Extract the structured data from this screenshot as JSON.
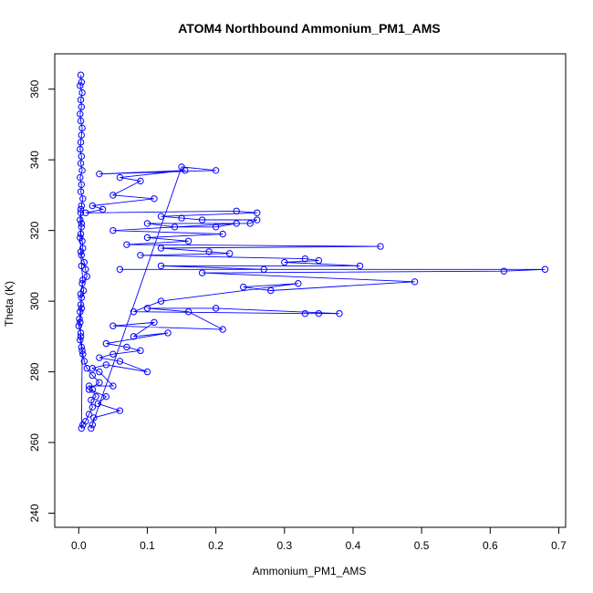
{
  "chart_data": {
    "type": "scatter",
    "title": "ATOM4 Northbound Ammonium_PM1_AMS",
    "xlabel": "Ammonium_PM1_AMS",
    "ylabel": "Theta (K)",
    "xlim": [
      -0.035,
      0.71
    ],
    "ylim": [
      236,
      370
    ],
    "x_ticks": [
      0.0,
      0.1,
      0.2,
      0.3,
      0.4,
      0.5,
      0.6,
      0.7
    ],
    "x_tick_labels": [
      "0.0",
      "0.1",
      "0.2",
      "0.3",
      "0.4",
      "0.5",
      "0.6",
      "0.7"
    ],
    "y_ticks": [
      240,
      260,
      280,
      300,
      320,
      340,
      360
    ],
    "y_tick_labels": [
      "240",
      "260",
      "280",
      "300",
      "320",
      "340",
      "360"
    ],
    "grid": false,
    "legend": "none",
    "point_style": "open-circle",
    "connected": true,
    "color": "#0000ff",
    "series": [
      {
        "values_x": [
          0.003,
          0.004,
          0.002,
          0.005,
          0.003,
          0.004,
          0.002,
          0.003,
          0.005,
          0.004,
          0.003,
          0.002,
          0.004,
          0.003,
          0.005,
          0.002,
          0.004,
          0.003,
          0.006,
          0.004,
          0.003,
          0.002,
          0.004,
          0.003,
          0.005,
          0.006,
          0.004,
          0.008,
          0.01,
          0.012,
          0.005,
          0.007,
          0.004,
          0.003,
          0.002,
          0.001,
          0.0,
          0.003,
          0.002,
          0.004,
          0.006,
          0.008,
          0.012,
          0.02,
          0.03,
          0.015,
          0.04,
          0.028,
          0.06,
          0.022,
          0.02,
          0.018,
          0.15,
          0.2,
          0.03,
          0.155,
          0.06,
          0.09,
          0.05,
          0.11,
          0.02,
          0.035,
          0.01,
          0.23,
          0.26,
          0.12,
          0.15,
          0.18,
          0.26,
          0.25,
          0.1,
          0.14,
          0.2,
          0.23,
          0.05,
          0.21,
          0.1,
          0.16,
          0.07,
          0.44,
          0.12,
          0.19,
          0.22,
          0.09,
          0.33,
          0.35,
          0.3,
          0.41,
          0.12,
          0.27,
          0.06,
          0.68,
          0.62,
          0.18,
          0.49,
          0.28,
          0.24,
          0.32,
          0.12,
          0.08,
          0.33,
          0.35,
          0.38,
          0.2,
          0.1,
          0.16,
          0.21,
          0.05,
          0.11,
          0.08,
          0.13,
          0.04,
          0.07,
          0.09,
          0.05,
          0.03,
          0.06,
          0.1,
          0.04,
          0.02,
          0.03,
          0.05,
          0.015,
          0.02,
          0.025,
          0.018,
          0.02,
          0.015,
          0.01,
          0.006,
          0.004,
          0.005,
          0.003,
          0.002,
          0.004,
          0.003,
          0.006,
          0.004,
          0.003,
          0.002,
          0.004,
          0.003
        ],
        "values_y": [
          364,
          362,
          361,
          359,
          357,
          355,
          353,
          351,
          349,
          347,
          345,
          343,
          341,
          339,
          337,
          335,
          333,
          331,
          329,
          327,
          325,
          323,
          321,
          319,
          317,
          315,
          313,
          311,
          309,
          307,
          305,
          303,
          301,
          299,
          297,
          295,
          293,
          291,
          289,
          287,
          285,
          283,
          281,
          279,
          277,
          275,
          273,
          271,
          269,
          267,
          265,
          264,
          338,
          337,
          336,
          337,
          335,
          334,
          330,
          329,
          327,
          326,
          325,
          325.5,
          325,
          324,
          323.5,
          323,
          323,
          322,
          322,
          321,
          321,
          322,
          320,
          319,
          318,
          317,
          316,
          315.5,
          315,
          314,
          313.5,
          313,
          312,
          311.5,
          311,
          310,
          310,
          309,
          309,
          309,
          308.5,
          308,
          305.5,
          303,
          304,
          305,
          300,
          297,
          296.5,
          296.5,
          296.5,
          298,
          298,
          297,
          292,
          293,
          294,
          290,
          291,
          288,
          287,
          286,
          285,
          284,
          283,
          280,
          282,
          281,
          280,
          276,
          276,
          275,
          273,
          272,
          270,
          268,
          266,
          265,
          264,
          286,
          290,
          294,
          298,
          302,
          306,
          310,
          314,
          318,
          322,
          326
        ]
      }
    ]
  }
}
